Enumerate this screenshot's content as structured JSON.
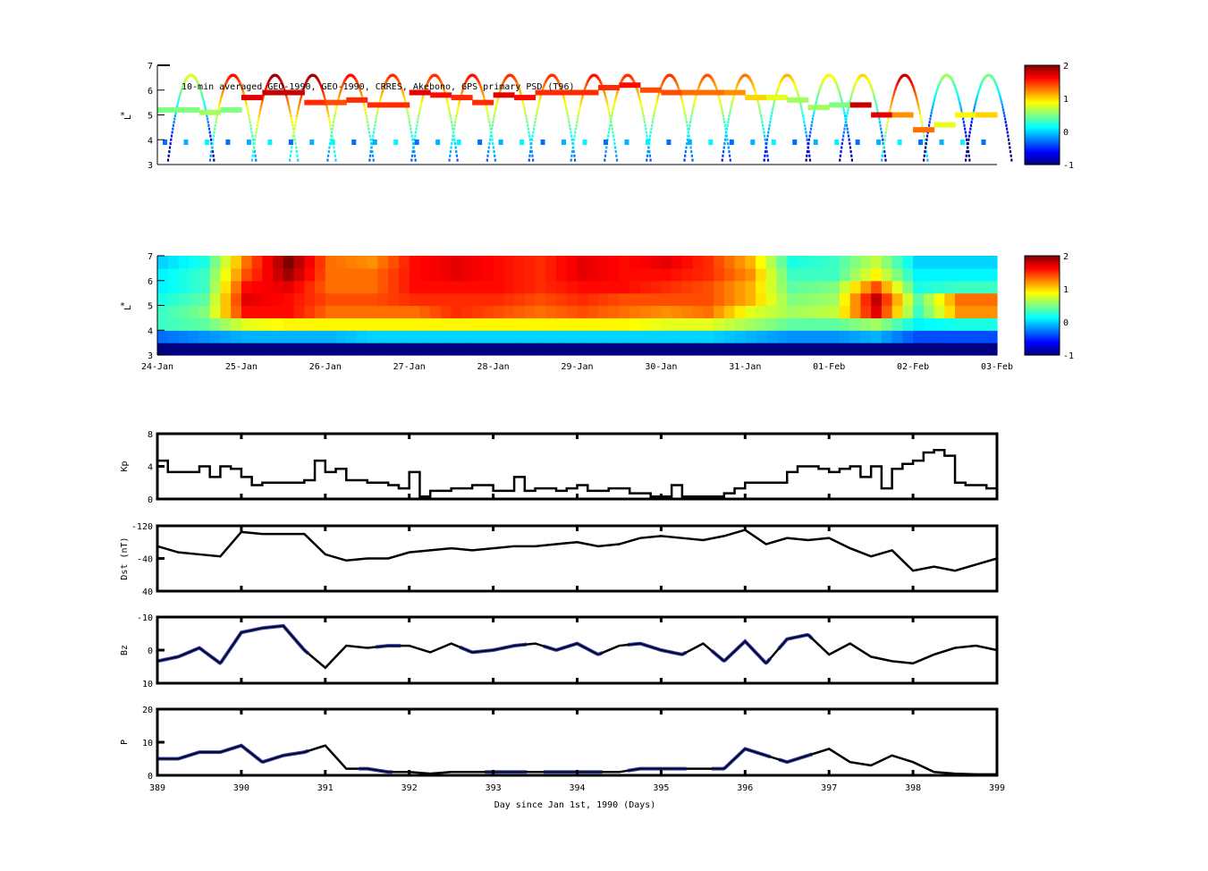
{
  "chart_data": [
    {
      "type": "scatter",
      "title": "10-min averaged GEO-1990, GEO-1990, CRRES, Akebono, GPS  primary PSD (T96)",
      "ylabel": "L*",
      "ylim": [
        3,
        7
      ],
      "yticks": [
        "3",
        "4",
        "5",
        "6",
        "7"
      ],
      "xlim": [
        389,
        399
      ],
      "colorbar": {
        "range": [
          -1,
          2
        ],
        "ticks": [
          "2",
          "1",
          "0",
          "-1"
        ]
      },
      "geo_band": {
        "t": [
          389.0,
          389.25,
          389.5,
          389.75,
          390.0,
          390.25,
          390.5,
          390.75,
          391.0,
          391.25,
          391.5,
          391.75,
          392.0,
          392.25,
          392.5,
          392.75,
          393.0,
          393.25,
          393.5,
          393.75,
          394.0,
          394.25,
          394.5,
          394.75,
          395.0,
          395.25,
          395.5,
          395.75,
          396.0,
          396.25,
          396.5,
          396.75,
          397.0,
          397.25,
          397.5,
          397.75,
          398.0,
          398.25,
          398.5,
          398.75
        ],
        "L": [
          5.2,
          5.2,
          5.1,
          5.2,
          5.7,
          5.9,
          5.9,
          5.5,
          5.5,
          5.6,
          5.4,
          5.4,
          5.9,
          5.8,
          5.7,
          5.5,
          5.8,
          5.7,
          5.9,
          5.9,
          5.9,
          6.1,
          6.2,
          6.0,
          5.9,
          5.9,
          5.9,
          5.9,
          5.7,
          5.7,
          5.6,
          5.3,
          5.4,
          5.4,
          5.0,
          5.0,
          4.4,
          4.6,
          5.0,
          5.0
        ],
        "psd": [
          0.5,
          0.5,
          0.6,
          0.5,
          1.7,
          1.8,
          1.8,
          1.5,
          1.4,
          1.5,
          1.5,
          1.5,
          1.7,
          1.6,
          1.5,
          1.5,
          1.7,
          1.6,
          1.5,
          1.5,
          1.5,
          1.5,
          1.6,
          1.4,
          1.4,
          1.3,
          1.3,
          1.2,
          1.0,
          0.8,
          0.6,
          0.6,
          0.5,
          1.8,
          1.7,
          1.2,
          1.3,
          0.8,
          0.9,
          1.0
        ]
      },
      "orbit_apogees": [
        389.4,
        389.9,
        390.4,
        390.85,
        391.3,
        391.8,
        392.3,
        392.75,
        393.2,
        393.7,
        394.2,
        394.6,
        395.1,
        395.55,
        396.0,
        396.5,
        397.0,
        397.4,
        397.9,
        398.4,
        398.9
      ],
      "apogee_psd": [
        0.8,
        1.6,
        1.9,
        1.9,
        1.6,
        1.5,
        1.5,
        1.6,
        1.5,
        1.5,
        1.6,
        1.5,
        1.5,
        1.4,
        1.3,
        1.1,
        0.9,
        1.0,
        1.8,
        0.6,
        0.5
      ]
    },
    {
      "type": "heatmap",
      "ylabel": "L*",
      "ylim": [
        3,
        7
      ],
      "yticks": [
        "3",
        "4",
        "5",
        "6",
        "7"
      ],
      "colorbar": {
        "range": [
          -1,
          2
        ],
        "ticks": [
          "2",
          "1",
          "0",
          "-1"
        ]
      },
      "xticklabels": [
        "24-Jan",
        "25-Jan",
        "26-Jan",
        "27-Jan",
        "28-Jan",
        "29-Jan",
        "30-Jan",
        "31-Jan",
        "01-Feb",
        "02-Feb",
        "03-Feb"
      ],
      "L_rows": [
        3.25,
        3.75,
        4.25,
        4.75,
        5.25,
        5.75,
        6.25,
        6.75
      ],
      "t_cols": [
        389.0,
        389.5,
        390.0,
        390.5,
        391.0,
        391.5,
        392.0,
        392.5,
        393.0,
        393.5,
        394.0,
        394.5,
        395.0,
        395.5,
        396.0,
        396.5,
        397.0,
        397.5,
        398.0,
        398.5
      ],
      "values": [
        [
          -1,
          -1,
          -1,
          -1,
          -1,
          -1,
          -1,
          -1,
          -1,
          -1,
          -1,
          -1,
          -1,
          -1,
          -1,
          -1,
          -1,
          -1,
          -1,
          -1
        ],
        [
          -0.3,
          -0.2,
          -0.1,
          -0.1,
          -0.1,
          0,
          0,
          0,
          0,
          0,
          0,
          0,
          0,
          0,
          -0.1,
          -0.2,
          -0.2,
          -0.1,
          -0.4,
          -0.4
        ],
        [
          0.3,
          0.4,
          0.8,
          0.9,
          0.9,
          0.9,
          0.9,
          0.9,
          0.9,
          0.9,
          0.9,
          0.9,
          0.8,
          0.8,
          0.6,
          0.4,
          0.4,
          0.6,
          0.1,
          0.2
        ],
        [
          0.3,
          0.5,
          1.6,
          1.6,
          1.3,
          1.3,
          1.3,
          1.5,
          1.4,
          1.3,
          1.4,
          1.3,
          1.2,
          1.3,
          0.8,
          0.6,
          0.7,
          1.7,
          0.3,
          1.2
        ],
        [
          0.2,
          0.4,
          1.7,
          1.6,
          1.4,
          1.4,
          1.5,
          1.5,
          1.5,
          1.4,
          1.5,
          1.4,
          1.4,
          1.4,
          1.1,
          0.5,
          0.6,
          1.8,
          0.4,
          1.3
        ],
        [
          0.1,
          0.3,
          1.6,
          1.7,
          1.3,
          1.3,
          1.6,
          1.6,
          1.6,
          1.5,
          1.6,
          1.6,
          1.5,
          1.4,
          1.1,
          0.4,
          0.5,
          1.4,
          0.2,
          0.3
        ],
        [
          0.1,
          0.3,
          1.4,
          1.9,
          1.3,
          1.3,
          1.6,
          1.7,
          1.6,
          1.5,
          1.7,
          1.6,
          1.6,
          1.5,
          1.2,
          0.3,
          0.3,
          0.9,
          0.1,
          0.1
        ],
        [
          0.0,
          0.2,
          1.3,
          2.0,
          1.3,
          1.2,
          1.6,
          1.7,
          1.6,
          1.5,
          1.7,
          1.6,
          1.7,
          1.5,
          1.1,
          0.2,
          0.3,
          0.7,
          0.0,
          0.0
        ]
      ]
    },
    {
      "type": "line",
      "ylabel": "Kp",
      "ylim": [
        0,
        8
      ],
      "yticks": [
        "0",
        "4",
        "8"
      ],
      "xlim": [
        389,
        399
      ],
      "dt": 0.125,
      "values": [
        4.7,
        3.3,
        3.3,
        3.3,
        4,
        2.7,
        4,
        3.7,
        2.7,
        1.7,
        2,
        2,
        2,
        2,
        2.3,
        4.7,
        3.3,
        3.7,
        2.3,
        2.3,
        2,
        2,
        1.7,
        1.3,
        3.3,
        0.3,
        1,
        1,
        1.3,
        1.3,
        1.7,
        1.7,
        1,
        1,
        2.7,
        1,
        1.3,
        1.3,
        1,
        1.3,
        1.7,
        1,
        1,
        1.3,
        1.3,
        0.7,
        0.7,
        0.3,
        0.3,
        1.7,
        0.3,
        0.3,
        0.3,
        0.3,
        0.7,
        1.3,
        2,
        2,
        2,
        2,
        3.3,
        4,
        4,
        3.7,
        3.3,
        3.7,
        4,
        2.7,
        4,
        1.3,
        3.7,
        4.3,
        4.7,
        5.7,
        6,
        5.3,
        2,
        1.7,
        1.7,
        1.3,
        0.7
      ]
    },
    {
      "type": "line",
      "ylabel": "Dst (nT)",
      "ylim": [
        -120,
        40
      ],
      "yticks": [
        "40",
        "-40",
        "-120"
      ],
      "xlim": [
        389,
        399
      ],
      "dt": 0.25,
      "values": [
        -10,
        -25,
        -30,
        -35,
        25,
        20,
        20,
        20,
        -30,
        -45,
        -40,
        -40,
        -25,
        -20,
        -15,
        -20,
        -15,
        -10,
        -10,
        -5,
        0,
        -10,
        -5,
        10,
        15,
        10,
        5,
        15,
        30,
        -5,
        10,
        5,
        10,
        -15,
        -35,
        -20,
        -70,
        -60,
        -70,
        -55,
        -40
      ]
    },
    {
      "type": "line",
      "ylabel": "Bz",
      "ylim": [
        -15,
        15
      ],
      "yticks": [
        "10",
        "0",
        "-10"
      ],
      "xlim": [
        389,
        399
      ],
      "dt": 0.25,
      "values": [
        -5,
        -3,
        1,
        -6,
        8,
        10,
        11,
        0,
        -8,
        2,
        1,
        2,
        2,
        -1,
        3,
        -1,
        0,
        2,
        3,
        0,
        3,
        -2,
        2,
        3,
        0,
        -2,
        3,
        -5,
        4,
        -6,
        5,
        7,
        -2,
        3,
        -3,
        -5,
        -6,
        -2,
        1,
        2,
        0
      ],
      "highlight_ranges": [
        [
          389,
          390.8
        ],
        [
          391.6,
          391.9
        ],
        [
          392.6,
          393.4
        ],
        [
          393.6,
          394.3
        ],
        [
          394.6,
          395.3
        ],
        [
          395.6,
          396.3
        ],
        [
          396.4,
          396.8
        ]
      ]
    },
    {
      "type": "line",
      "ylabel": "P",
      "ylim": [
        0,
        20
      ],
      "yticks": [
        "0",
        "10",
        "20"
      ],
      "xlim": [
        389,
        399
      ],
      "dt": 0.25,
      "values": [
        5,
        5,
        7,
        7,
        9,
        4,
        6,
        7,
        9,
        2,
        2,
        1,
        1,
        0.5,
        1,
        1,
        1,
        1,
        1,
        1,
        1,
        1,
        1,
        2,
        2,
        2,
        2,
        2,
        8,
        6,
        4,
        6,
        8,
        4,
        3,
        6,
        4,
        1,
        0.5,
        0.3,
        0.3
      ],
      "highlight_ranges": [
        [
          389,
          390.8
        ],
        [
          391.4,
          391.8
        ],
        [
          392.9,
          393.4
        ],
        [
          393.6,
          394.3
        ],
        [
          394.6,
          395.3
        ],
        [
          395.6,
          396.3
        ],
        [
          396.4,
          396.8
        ]
      ],
      "xticks": [
        "389",
        "390",
        "391",
        "392",
        "393",
        "394",
        "395",
        "396",
        "397",
        "398",
        "399"
      ],
      "xlabel": "Day since Jan 1st, 1990 (Days)"
    }
  ],
  "colors": {
    "highlight": "#1f2a9a",
    "line": "#000000"
  }
}
